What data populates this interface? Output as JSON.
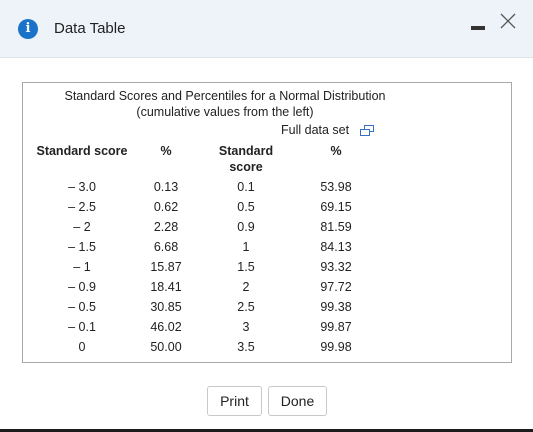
{
  "window": {
    "title": "Data Table",
    "info_icon": "i",
    "icons": [
      "info-icon",
      "minimize-icon",
      "close-icon"
    ]
  },
  "table": {
    "caption_line1": "Standard Scores and Percentiles for a Normal Distribution",
    "caption_line2": "(cumulative values from the left)",
    "full_data_label": "Full data set",
    "headers": {
      "score1": "Standard score",
      "pct1": "%",
      "score2_line1": "Standard",
      "score2_line2": "score",
      "pct2": "%"
    },
    "rows": [
      {
        "s1": "– 3.0",
        "p1": "0.13",
        "s2": "0.1",
        "p2": "53.98"
      },
      {
        "s1": "– 2.5",
        "p1": "0.62",
        "s2": "0.5",
        "p2": "69.15"
      },
      {
        "s1": "– 2",
        "p1": "2.28",
        "s2": "0.9",
        "p2": "81.59"
      },
      {
        "s1": "– 1.5",
        "p1": "6.68",
        "s2": "1",
        "p2": "84.13"
      },
      {
        "s1": "– 1",
        "p1": "15.87",
        "s2": "1.5",
        "p2": "93.32"
      },
      {
        "s1": "– 0.9",
        "p1": "18.41",
        "s2": "2",
        "p2": "97.72"
      },
      {
        "s1": "– 0.5",
        "p1": "30.85",
        "s2": "2.5",
        "p2": "99.38"
      },
      {
        "s1": "– 0.1",
        "p1": "46.02",
        "s2": "3",
        "p2": "99.87"
      },
      {
        "s1": "0",
        "p1": "50.00",
        "s2": "3.5",
        "p2": "99.98"
      }
    ]
  },
  "buttons": {
    "print": "Print",
    "done": "Done"
  },
  "colors": {
    "titlebar_bg": "#eef3fa",
    "info_blue": "#1a73c9",
    "border": "#a9a9a9"
  }
}
